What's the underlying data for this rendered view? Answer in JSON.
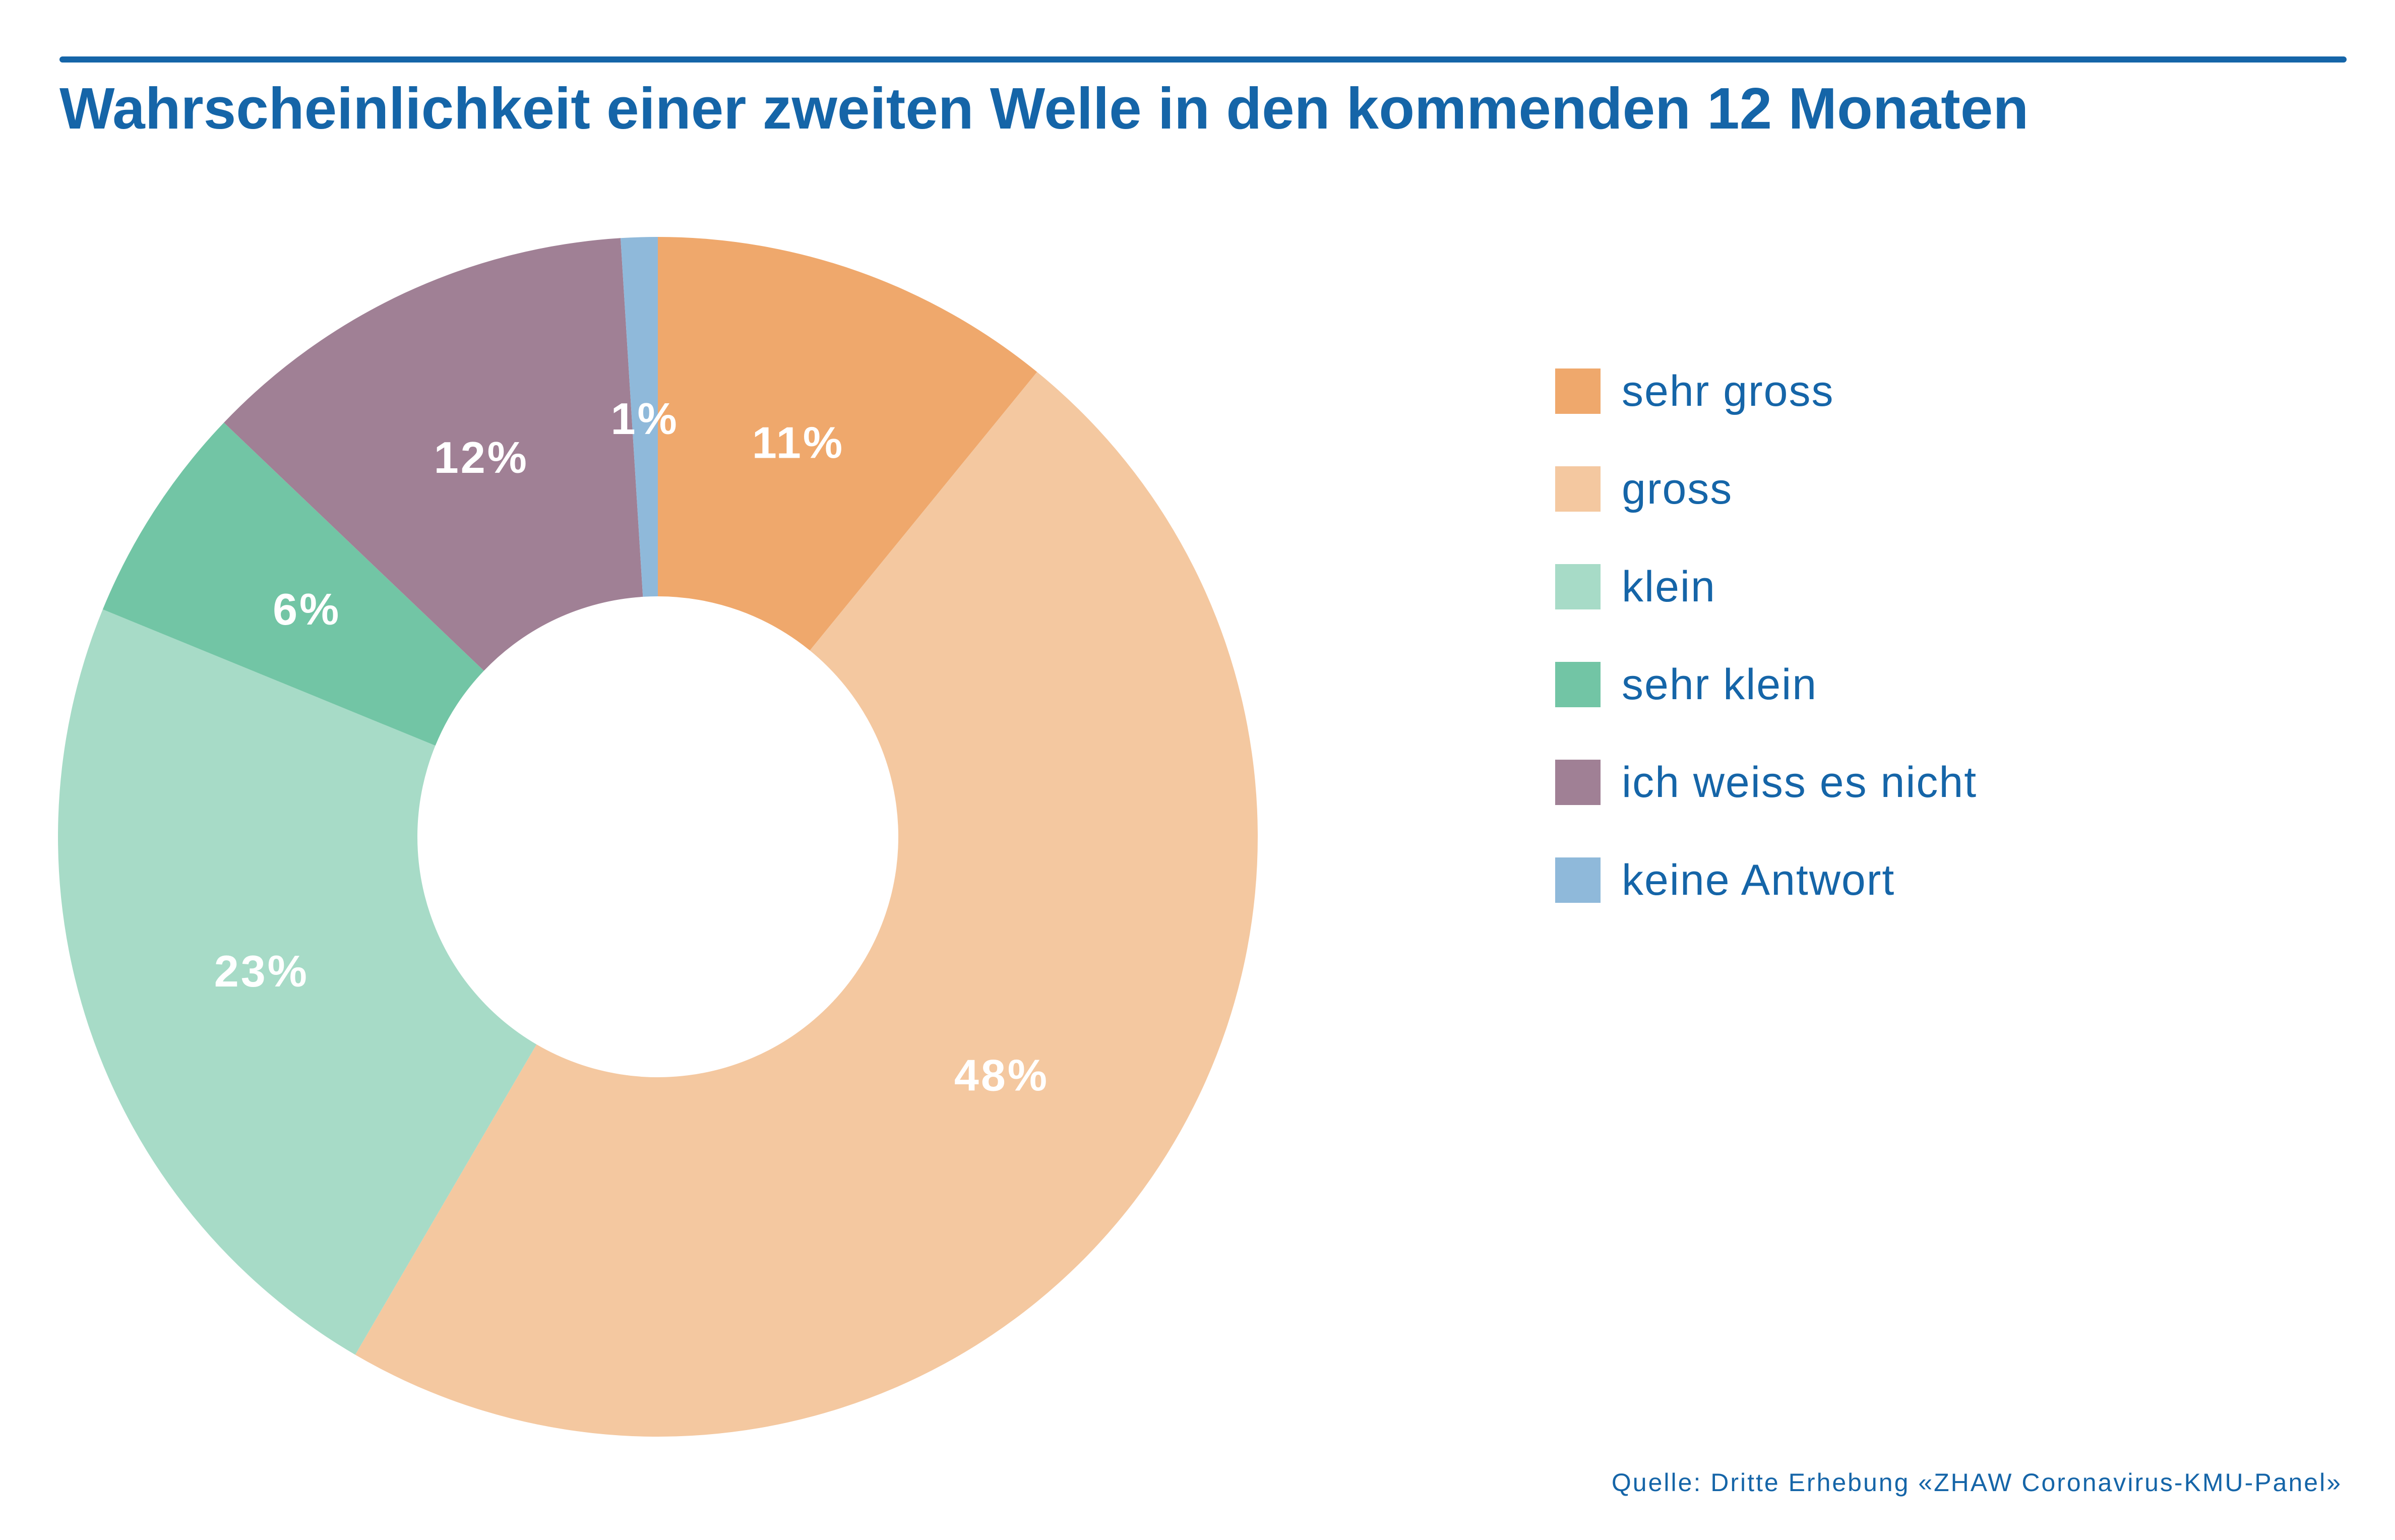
{
  "title": "Wahrscheinlichkeit einer zweiten Welle in den kommenden 12 Monaten",
  "source": "Quelle: Dritte Erhebung «ZHAW Coronavirus-KMU-Panel»",
  "chart_data": {
    "type": "pie",
    "subtype": "donut",
    "title": "Wahrscheinlichkeit einer zweiten Welle in den kommenden 12 Monaten",
    "categories": [
      "sehr gross",
      "gross",
      "klein",
      "sehr klein",
      "ich weiss es nicht",
      "keine Antwort"
    ],
    "values": [
      11,
      48,
      23,
      6,
      12,
      1
    ],
    "value_labels": [
      "11%",
      "48%",
      "23%",
      "6%",
      "12%",
      "1%"
    ],
    "unit": "%",
    "colors": [
      "#efa86c",
      "#f4c8a0",
      "#a7dbc7",
      "#72c5a5",
      "#a08095",
      "#8fb9da"
    ],
    "legend_position": "right"
  }
}
